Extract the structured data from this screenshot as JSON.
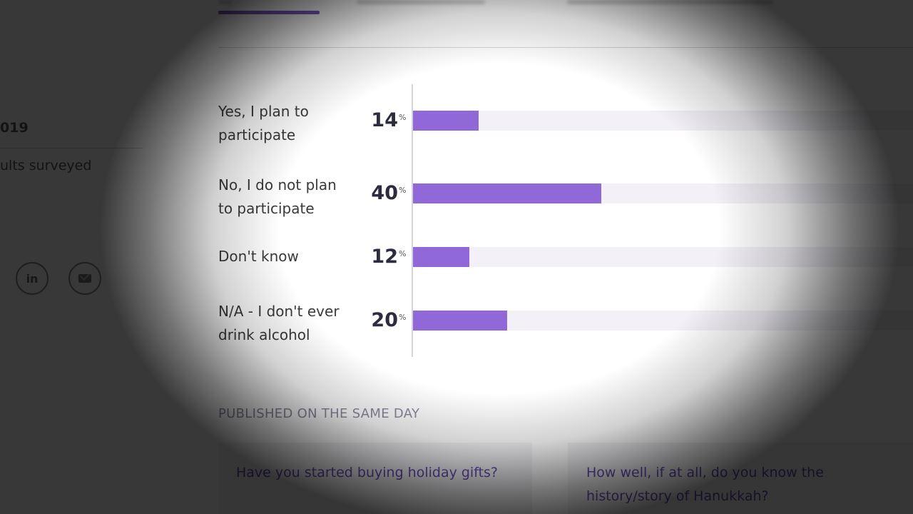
{
  "sidebar": {
    "date_fragment": "019",
    "survey_fragment": "ults surveyed",
    "share": [
      {
        "name": "linkedin",
        "label": "in"
      },
      {
        "name": "email",
        "icon": "envelope-icon"
      }
    ]
  },
  "chart_data": {
    "type": "bar",
    "orientation": "horizontal",
    "unit": "%",
    "categories": [
      "Yes, I plan to participate",
      "No, I do not plan to participate",
      "Don't know",
      "N/A - I don't ever drink alcohol"
    ],
    "values": [
      14,
      40,
      12,
      20
    ],
    "xlim": [
      0,
      100
    ],
    "colors": {
      "bar": "#9068d8",
      "track": "#f3f1f7"
    },
    "grid": false
  },
  "published": {
    "heading": "PUBLISHED ON THE SAME DAY",
    "cards": [
      {
        "title": "Have you started buying holiday gifts?"
      },
      {
        "title": "How well, if at all, do you know the history/story of Hanukkah?"
      }
    ]
  }
}
